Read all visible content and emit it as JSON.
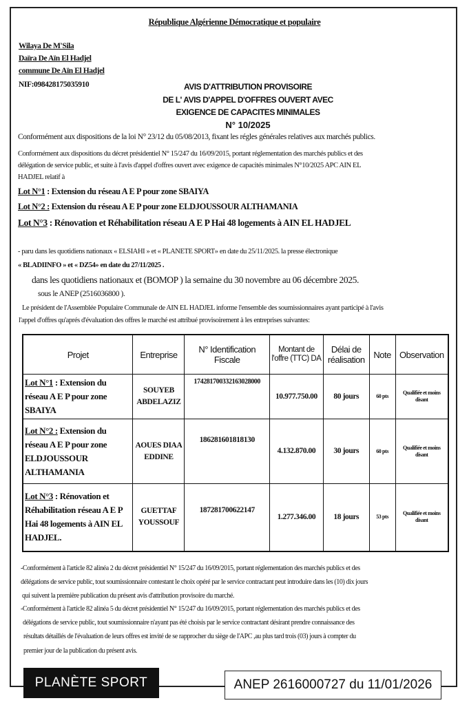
{
  "header": {
    "republic": "République Algérienne Démocratique et populaire",
    "wilaya": "Wilaya De M'Sila",
    "daira": "Daïra De Aïn El Hadjel",
    "commune": "commune De Aïn El Hadjel",
    "nif": "NIF:098428175035910"
  },
  "title": {
    "line1": "AVIS D'ATTRIBUTION PROVISOIRE",
    "line2": "DE L' AVIS D'APPEL D'OFFRES OUVERT AVEC",
    "line3": "EXIGENCE DE CAPACITES MINIMALES",
    "number": "N° 10/2025"
  },
  "intro": {
    "p1": "Conformément aux dispositions de la loi  N° 23/12 du 05/08/2013, fixant les régles générales relatives aux marchés  publics.",
    "p2a": "Conformément aux dispositions du décret présidentiel  N° 15/247 du 16/09/2015, portant réglementation des marchés publics et des",
    "p2b": "délégation de service public, et suite à l'avis d'appel d'offres ouvert avec exigence de capacités  minimales  N°10/2025  APC AIN EL",
    "p2c": "HADJEL relatif à"
  },
  "lots": [
    {
      "label": "Lot N°1",
      "text": " : Extension du  réseau A E P pour  zone SBAIYA"
    },
    {
      "label": "Lot N°2 :",
      "text": " Extension du  réseau A E P pour zone ELDJOUSSOUR ALTHAMANIA"
    },
    {
      "label": "Lot N°3",
      "text": " : Rénovation et Réhabilitation réseau A E P  Hai  48 logements  à AIN EL HADJEL"
    }
  ],
  "publication": {
    "line1": "- paru dans les quotidiens nationaux « ELSIAHI » et « PLANETE SPORT» en date du 25/11/2025. la presse électronique",
    "line2": "« BLADIINFO » et « DZ54» en date du 27/11/2025 .",
    "line3": "dans les quotidiens nationaux et (BOMOP ) la semaine du 30 novembre au 06 décembre 2025.",
    "line4": "sous le ANEP  (2516036800  ).",
    "line5": "Le président de l'Assemblée Populaire Communale de AIN EL HADJEL informe l'ensemble des soumissionnaires ayant  participé à l'avis",
    "line6": "l'appel  d'offres qu'aprés d'évaluation des offres le marché est attribué provisoirement à les entreprises suivantes:"
  },
  "table": {
    "headers": [
      "Projet",
      "Entreprise",
      "N° Identification Fiscale",
      "Montant de l'offre (TTC) DA",
      "Délai de réalisation",
      "Note",
      "Observation"
    ],
    "rows": [
      {
        "lot": "Lot N°1",
        "projet": " : Extension du réseau A E P pour  zone SBAIYA",
        "entreprise": "SOUYEB ABDELAZIZ",
        "nif": "174281700332163028000",
        "montant": "10.977.750.00",
        "delai": "80 jours",
        "note": "60 pts",
        "observation": "Qualifiée et moins disant"
      },
      {
        "lot": "Lot N°2 :",
        "projet": " Extension du réseau A E P pour zone ELDJOUSSOUR ALTHAMANIA",
        "entreprise": "AOUES DIAA EDDINE",
        "nif": "186281601818130",
        "montant": "4.132.870.00",
        "delai": "30 jours",
        "note": "60 pts",
        "observation": "Qualifiée et moins disant"
      },
      {
        "lot": "Lot N°3",
        "projet": " :  Rénovation et Réhabilitation réseau A E P Hai  48 logements  à AIN EL HADJEL.",
        "entreprise": "GUETTAF YOUSSOUF",
        "nif": "187281700622147",
        "montant": "1.277.346.00",
        "delai": "18 jours",
        "note": "53 pts",
        "observation": "Qualifiée et moins disant"
      }
    ]
  },
  "footer_text": {
    "a1": "-Conformément à l'article 82 alinéa 2 du décret présidentiel  N° 15/247 du 16/09/2015, portant réglementation des marchés publics et des",
    "a2": "délégations de service public, tout soumissionnaire contestant le choix opéré par le service contractant  peut  introduire dans les (10) dix jours",
    "a3": "qui suivent la première publication du présent avis d'attribution provisoire  du marché.",
    "b1": "-Conformément à l'article 82 alinéa 5 du décret présidentiel  N° 15/247 du 16/09/2015, portant réglementation des marchés publics et des",
    "b2": "délégations de service public, tout soumissionnaire n'ayant pas été choisis par le service contractant désirant prendre connaissance des",
    "b3": "résultats détaillés de l'évaluation de leurs offres est invité de se rapprocher du siège de l'APC ,au plus tard trois (03) jours à compter du",
    "b4": "premier jour de la publication du présent avis."
  },
  "stamp": {
    "newspaper": "PLANÈTE SPORT",
    "anep": "ANEP 2616000727 du 11/01/2026"
  }
}
